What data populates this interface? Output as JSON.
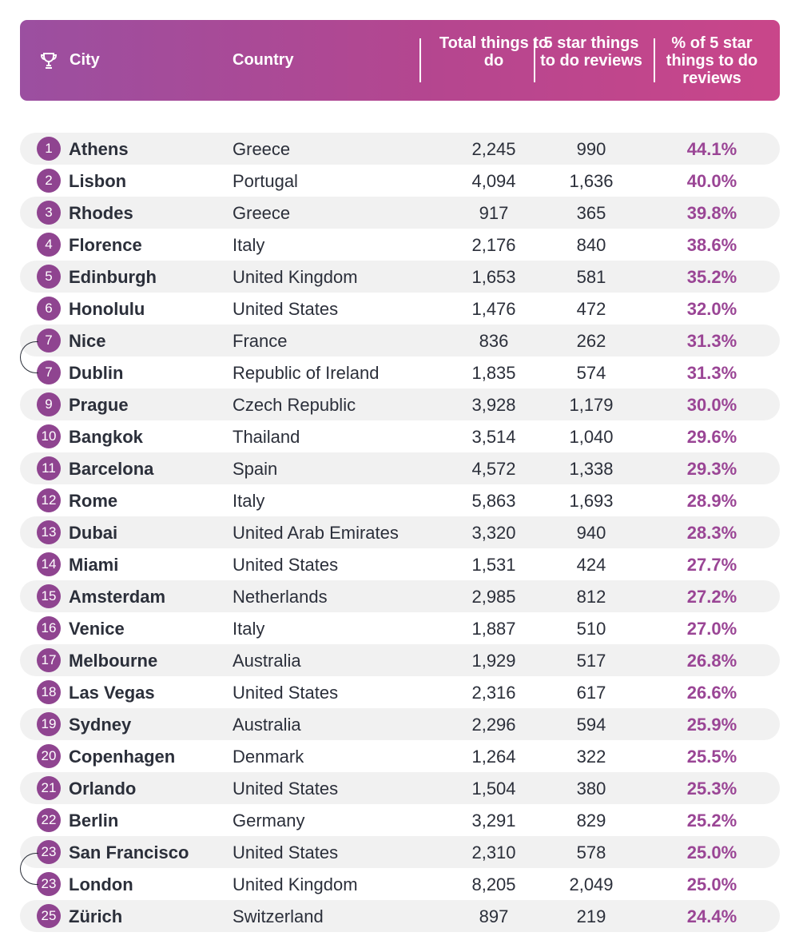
{
  "header": {
    "icon": "trophy-icon",
    "city": "City",
    "country": "Country",
    "total": "Total things to do",
    "five_star": "5 star things to do reviews",
    "percent": "% of 5 star things to do reviews"
  },
  "colors": {
    "header_start": "#9b4fa0",
    "header_end": "#c9468a",
    "rank_badge": "#8f4490",
    "percent_text": "#9a4595"
  },
  "rows": [
    {
      "rank": "1",
      "city": "Athens",
      "country": "Greece",
      "total": "2,245",
      "five_star": "990",
      "percent": "44.1%"
    },
    {
      "rank": "2",
      "city": "Lisbon",
      "country": "Portugal",
      "total": "4,094",
      "five_star": "1,636",
      "percent": "40.0%"
    },
    {
      "rank": "3",
      "city": "Rhodes",
      "country": "Greece",
      "total": "917",
      "five_star": "365",
      "percent": "39.8%"
    },
    {
      "rank": "4",
      "city": "Florence",
      "country": "Italy",
      "total": "2,176",
      "five_star": "840",
      "percent": "38.6%"
    },
    {
      "rank": "5",
      "city": "Edinburgh",
      "country": "United Kingdom",
      "total": "1,653",
      "five_star": "581",
      "percent": "35.2%"
    },
    {
      "rank": "6",
      "city": "Honolulu",
      "country": "United States",
      "total": "1,476",
      "five_star": "472",
      "percent": "32.0%"
    },
    {
      "rank": "7",
      "city": "Nice",
      "country": "France",
      "total": "836",
      "five_star": "262",
      "percent": "31.3%"
    },
    {
      "rank": "7",
      "city": "Dublin",
      "country": "Republic of Ireland",
      "total": "1,835",
      "five_star": "574",
      "percent": "31.3%"
    },
    {
      "rank": "9",
      "city": "Prague",
      "country": "Czech Republic",
      "total": "3,928",
      "five_star": "1,179",
      "percent": "30.0%"
    },
    {
      "rank": "10",
      "city": "Bangkok",
      "country": "Thailand",
      "total": "3,514",
      "five_star": "1,040",
      "percent": "29.6%"
    },
    {
      "rank": "11",
      "city": "Barcelona",
      "country": "Spain",
      "total": "4,572",
      "five_star": "1,338",
      "percent": "29.3%"
    },
    {
      "rank": "12",
      "city": "Rome",
      "country": "Italy",
      "total": "5,863",
      "five_star": "1,693",
      "percent": "28.9%"
    },
    {
      "rank": "13",
      "city": "Dubai",
      "country": "United Arab Emirates",
      "total": "3,320",
      "five_star": "940",
      "percent": "28.3%"
    },
    {
      "rank": "14",
      "city": "Miami",
      "country": "United States",
      "total": "1,531",
      "five_star": "424",
      "percent": "27.7%"
    },
    {
      "rank": "15",
      "city": "Amsterdam",
      "country": "Netherlands",
      "total": "2,985",
      "five_star": "812",
      "percent": "27.2%"
    },
    {
      "rank": "16",
      "city": "Venice",
      "country": "Italy",
      "total": "1,887",
      "five_star": "510",
      "percent": "27.0%"
    },
    {
      "rank": "17",
      "city": "Melbourne",
      "country": "Australia",
      "total": "1,929",
      "five_star": "517",
      "percent": "26.8%"
    },
    {
      "rank": "18",
      "city": "Las Vegas",
      "country": "United States",
      "total": "2,316",
      "five_star": "617",
      "percent": "26.6%"
    },
    {
      "rank": "19",
      "city": "Sydney",
      "country": "Australia",
      "total": "2,296",
      "five_star": "594",
      "percent": "25.9%"
    },
    {
      "rank": "20",
      "city": "Copenhagen",
      "country": "Denmark",
      "total": "1,264",
      "five_star": "322",
      "percent": "25.5%"
    },
    {
      "rank": "21",
      "city": "Orlando",
      "country": "United States",
      "total": "1,504",
      "five_star": "380",
      "percent": "25.3%"
    },
    {
      "rank": "22",
      "city": "Berlin",
      "country": "Germany",
      "total": "3,291",
      "five_star": "829",
      "percent": "25.2%"
    },
    {
      "rank": "23",
      "city": "San Francisco",
      "country": "United States",
      "total": "2,310",
      "five_star": "578",
      "percent": "25.0%"
    },
    {
      "rank": "23",
      "city": "London",
      "country": "United Kingdom",
      "total": "8,205",
      "five_star": "2,049",
      "percent": "25.0%"
    },
    {
      "rank": "25",
      "city": "Zürich",
      "country": "Switzerland",
      "total": "897",
      "five_star": "219",
      "percent": "24.4%"
    }
  ]
}
